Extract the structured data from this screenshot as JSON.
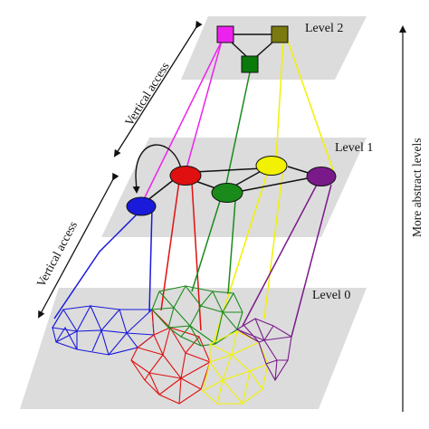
{
  "levels": {
    "level2": "Level 2",
    "level1": "Level 1",
    "level0": "Level 0"
  },
  "annotations": {
    "vertical_access_upper": "Vertical access",
    "vertical_access_lower": "Vertical access",
    "more_abstract": "More abstract levels"
  },
  "colors": {
    "plane": "#dcdcdc",
    "blue": "#1a1adb",
    "red": "#e01010",
    "green": "#1a8a1a",
    "yellow": "#f2f200",
    "purple": "#7a1a8a",
    "magenta": "#ee22ee",
    "olive": "#7a7a10",
    "dark_green": "#0a7a0a"
  },
  "nodes": {
    "level2": [
      "magenta-square",
      "olive-square",
      "green-square"
    ],
    "level1": [
      "blue-ellipse",
      "red-ellipse",
      "green-ellipse",
      "yellow-ellipse",
      "purple-ellipse"
    ],
    "level0_regions": [
      "blue-mesh",
      "red-mesh",
      "green-mesh",
      "yellow-mesh",
      "purple-mesh"
    ]
  }
}
